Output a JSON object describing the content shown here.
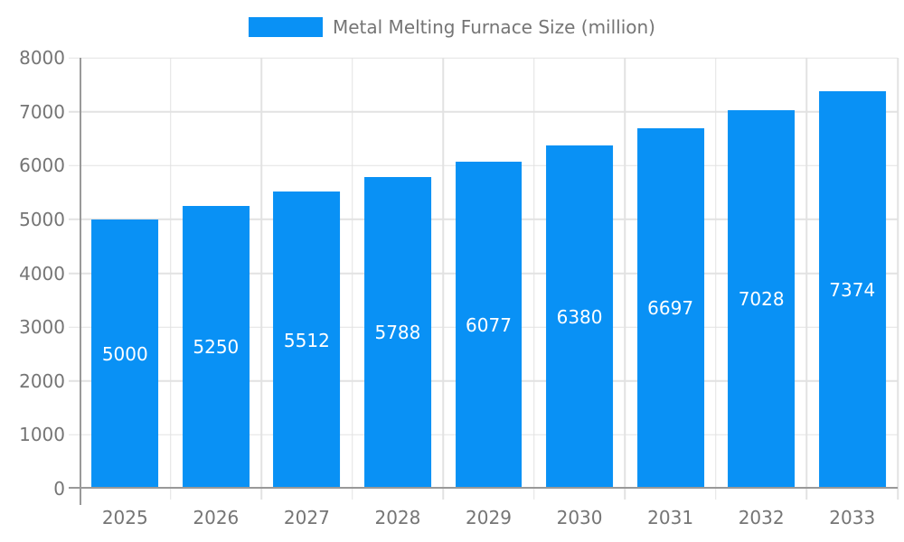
{
  "legend": {
    "series_label": "Metal Melting Furnace Size (million)"
  },
  "chart_data": {
    "type": "bar",
    "title": "Metal Melting Furnace Size (million)",
    "categories": [
      "2025",
      "2026",
      "2027",
      "2028",
      "2029",
      "2030",
      "2031",
      "2032",
      "2033"
    ],
    "values": [
      5000,
      5250,
      5512,
      5788,
      6077,
      6380,
      6697,
      7028,
      7374
    ],
    "xlabel": "",
    "ylabel": "",
    "ylim": [
      0,
      8000
    ],
    "ytick_step": 1000,
    "grid": true,
    "legend_position": "top-center",
    "colors": {
      "bar": "#0991f5",
      "value_label": "#ffffff",
      "axis": "#999999",
      "grid": "#e2e2e2",
      "tick_label": "#757575"
    }
  }
}
